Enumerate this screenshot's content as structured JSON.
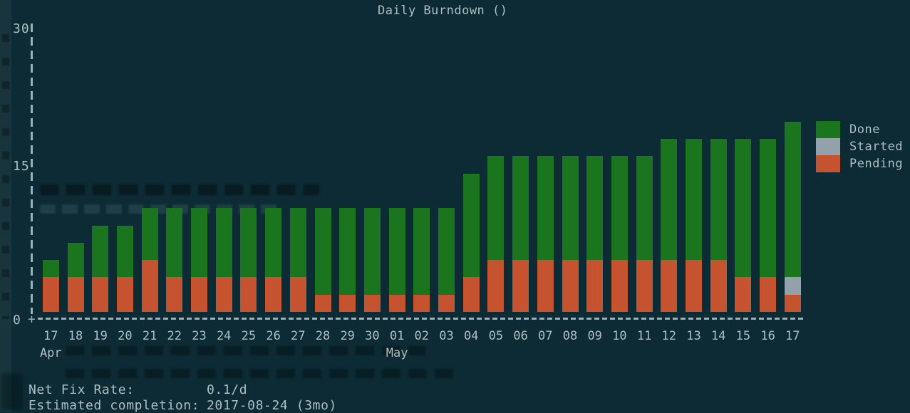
{
  "chart_data": {
    "type": "bar",
    "stacked": true,
    "title": "Daily Burndown ()",
    "xlabel": "",
    "ylabel": "",
    "ylim": [
      0,
      30
    ],
    "yticks": [
      30,
      15,
      0
    ],
    "axis_origin": "+",
    "grid": false,
    "legend_position": "right",
    "categories": [
      "17",
      "18",
      "19",
      "20",
      "21",
      "22",
      "23",
      "24",
      "25",
      "26",
      "27",
      "28",
      "29",
      "30",
      "01",
      "02",
      "03",
      "04",
      "05",
      "06",
      "07",
      "08",
      "09",
      "10",
      "11",
      "12",
      "13",
      "14",
      "15",
      "16",
      "17"
    ],
    "month_labels": [
      {
        "label": "Apr",
        "index": 0
      },
      {
        "label": "May",
        "index": 14
      }
    ],
    "series": [
      {
        "name": "Done",
        "color": "#1a751e",
        "values": [
          2,
          4,
          6,
          6,
          6,
          8,
          8,
          8,
          8,
          8,
          8,
          10,
          10,
          10,
          10,
          10,
          10,
          12,
          12,
          12,
          12,
          12,
          12,
          12,
          12,
          14,
          14,
          14,
          16,
          16,
          18
        ]
      },
      {
        "name": "Started",
        "color": "#93a2aa",
        "values": [
          0,
          0,
          0,
          0,
          0,
          0,
          0,
          0,
          0,
          0,
          0,
          0,
          0,
          0,
          0,
          0,
          0,
          0,
          0,
          0,
          0,
          0,
          0,
          0,
          0,
          0,
          0,
          0,
          0,
          0,
          2
        ]
      },
      {
        "name": "Pending",
        "color": "#c6532f",
        "values": [
          4,
          4,
          4,
          4,
          6,
          4,
          4,
          4,
          4,
          4,
          4,
          2,
          2,
          2,
          2,
          2,
          2,
          4,
          6,
          6,
          6,
          6,
          6,
          6,
          6,
          6,
          6,
          6,
          4,
          4,
          2
        ]
      }
    ]
  },
  "footer": {
    "net_fix_rate_label": "Net Fix Rate:",
    "net_fix_rate_value": "0.1/d",
    "completion_label": "Estimated completion:",
    "completion_value": "2017-08-24 (3mo)"
  },
  "colors": {
    "background": "#0c2b34",
    "text": "#aebfc4",
    "axis": "#9bb0b6",
    "done": "#1a751e",
    "started": "#93a2aa",
    "pending": "#c6532f"
  }
}
